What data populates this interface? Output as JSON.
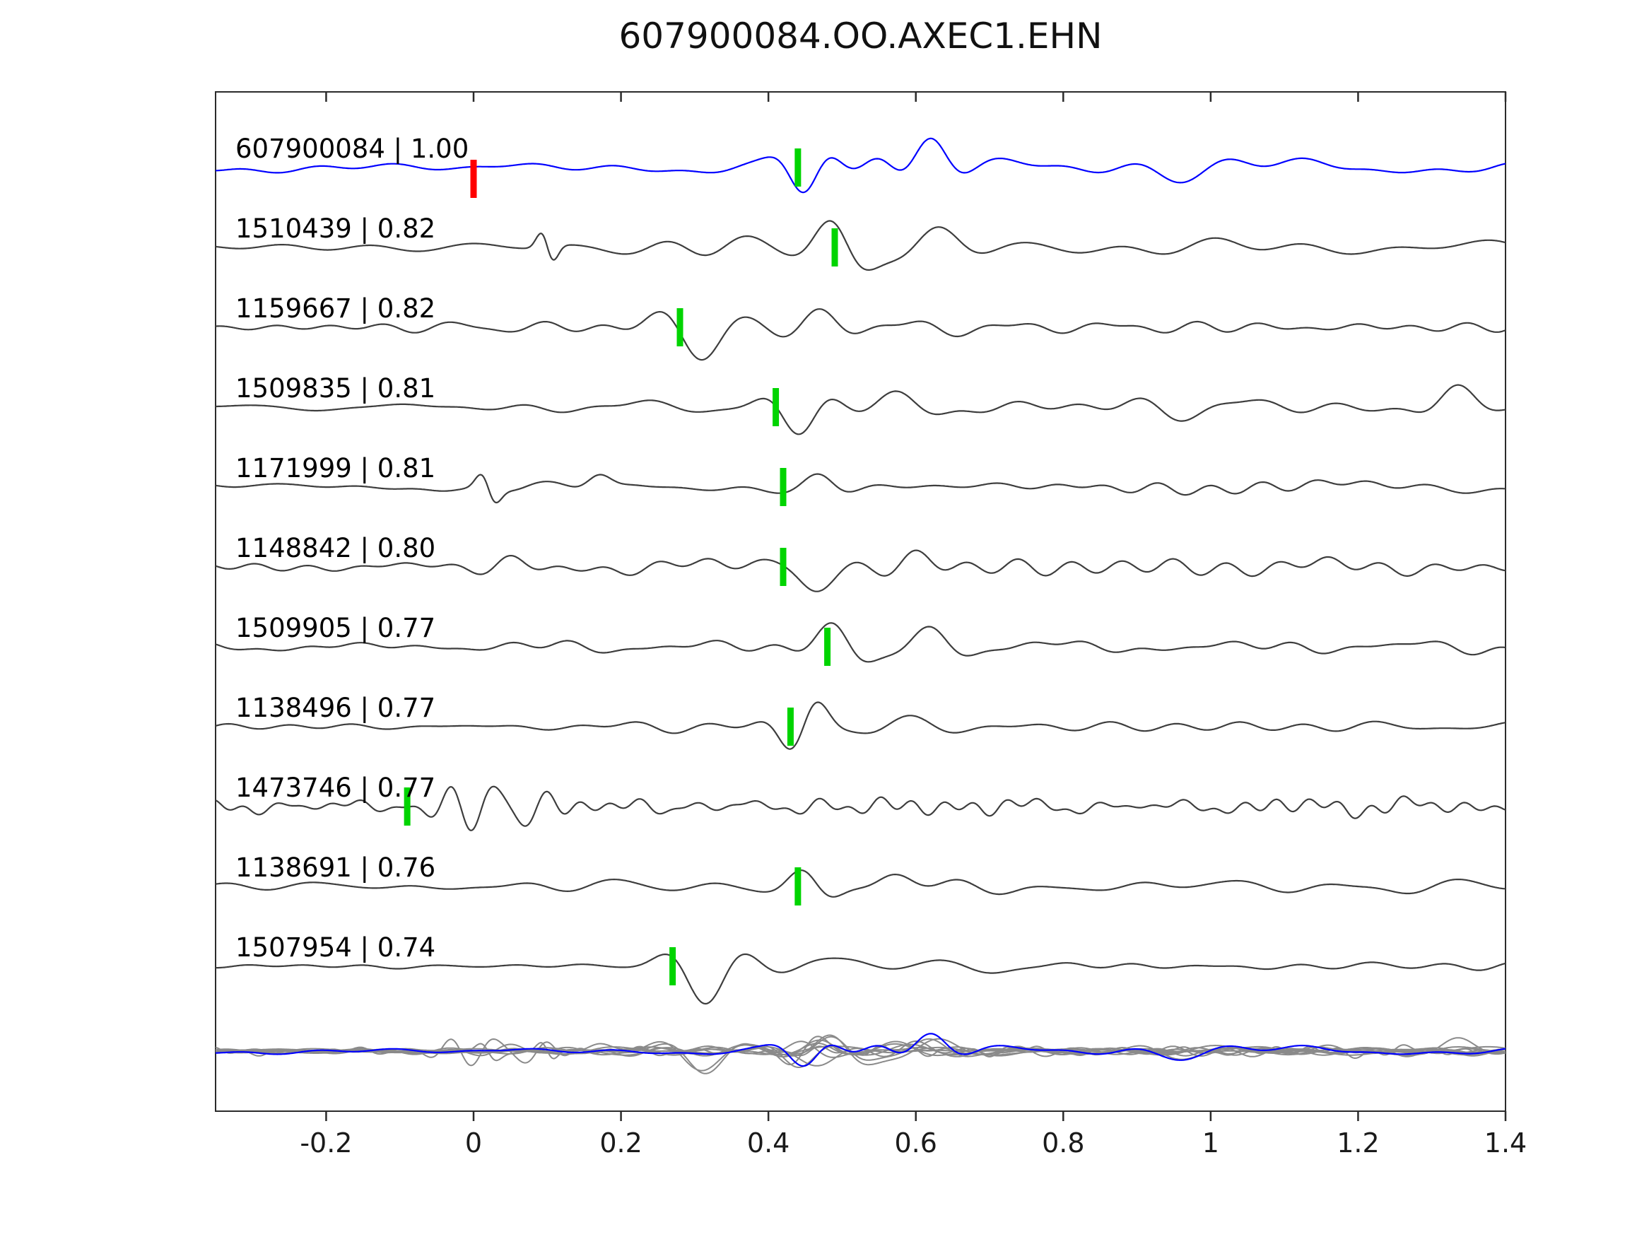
{
  "title": "607900084.OO.AXEC1.EHN",
  "colors": {
    "reference_trace": "#0000ff",
    "candidate_trace": "#3d3d3d",
    "overlay_trace": "#8a8a8a",
    "pick_marker": "#00d400",
    "reference_pick_marker": "#ff0000",
    "axis": "#2b2b2b",
    "background": "#ffffff"
  },
  "chart_data": {
    "type": "line",
    "subtype": "seismic-waveform-stack",
    "title": "607900084.OO.AXEC1.EHN",
    "xlabel": "",
    "ylabel": "",
    "xlim": [
      -0.35,
      1.4
    ],
    "xticks": [
      -0.2,
      0,
      0.2,
      0.4,
      0.6,
      0.8,
      1,
      1.2,
      1.4
    ],
    "xtick_labels": [
      "-0.2",
      "0",
      "0.2",
      "0.4",
      "0.6",
      "0.8",
      "1",
      "1.2",
      "1.4"
    ],
    "grid": false,
    "legend": "none",
    "traces": [
      {
        "id": "607900084",
        "similarity": 1.0,
        "label": "607900084 | 1.00",
        "color": "#0000ff",
        "picks": [
          {
            "time": 0.0,
            "color": "#ff0000",
            "offset": 16
          },
          {
            "time": 0.44,
            "color": "#00d400",
            "offset": 0
          }
        ],
        "synthesis": {
          "seed": 101,
          "noise_amp": 6,
          "freq_scale": 1,
          "pre_gain": 0.7,
          "bursts": [
            [
              0.45,
              38,
              0.04,
              9,
              3.3
            ],
            [
              0.55,
              26,
              0.05,
              8,
              0
            ],
            [
              0.62,
              50,
              0.045,
              6.5,
              0
            ],
            [
              0.75,
              10,
              0.1,
              7,
              1
            ],
            [
              0.95,
              13,
              0.12,
              6,
              2
            ],
            [
              1.1,
              10,
              0.1,
              7,
              4
            ]
          ]
        }
      },
      {
        "id": "1510439",
        "similarity": 0.82,
        "label": "1510439 | 0.82",
        "color": "#3d3d3d",
        "picks": [
          {
            "time": 0.49,
            "color": "#00d400",
            "offset": 0
          }
        ],
        "synthesis": {
          "seed": 202,
          "noise_amp": 5,
          "freq_scale": 1,
          "pre_gain": 0.7,
          "bursts": [
            [
              0.1,
              36,
              0.015,
              16,
              1.57
            ],
            [
              0.5,
              40,
              0.05,
              8,
              1.2
            ],
            [
              0.63,
              24,
              0.07,
              7,
              0
            ],
            [
              0.3,
              8,
              0.1,
              9,
              2
            ]
          ]
        }
      },
      {
        "id": "1159667",
        "similarity": 0.82,
        "label": "1159667 | 0.82",
        "color": "#3d3d3d",
        "picks": [
          {
            "time": 0.28,
            "color": "#00d400",
            "offset": 0
          }
        ],
        "synthesis": {
          "seed": 303,
          "noise_amp": 5,
          "freq_scale": 1,
          "pre_gain": 0.7,
          "bursts": [
            [
              0.31,
              46,
              0.06,
              7,
              2.9
            ],
            [
              0.47,
              20,
              0.06,
              7,
              0
            ],
            [
              0.6,
              10,
              0.1,
              6,
              1
            ]
          ]
        }
      },
      {
        "id": "1509835",
        "similarity": 0.81,
        "label": "1509835 | 0.81",
        "color": "#3d3d3d",
        "picks": [
          {
            "time": 0.41,
            "color": "#00d400",
            "offset": 0
          }
        ],
        "synthesis": {
          "seed": 404,
          "noise_amp": 6,
          "freq_scale": 1,
          "pre_gain": 0.7,
          "bursts": [
            [
              0.44,
              38,
              0.05,
              8,
              3.0
            ],
            [
              0.58,
              20,
              0.07,
              7,
              0
            ],
            [
              0.95,
              12,
              0.1,
              7,
              2
            ],
            [
              1.34,
              30,
              0.05,
              7,
              0.5
            ]
          ]
        }
      },
      {
        "id": "1171999",
        "similarity": 0.81,
        "label": "1171999 | 0.81",
        "color": "#3d3d3d",
        "picks": [
          {
            "time": 0.42,
            "color": "#00d400",
            "offset": 0
          }
        ],
        "synthesis": {
          "seed": 505,
          "noise_amp": 4.5,
          "freq_scale": 1,
          "pre_gain": 0.7,
          "bursts": [
            [
              0.02,
              30,
              0.018,
              15,
              1.57
            ],
            [
              0.17,
              12,
              0.03,
              10,
              0
            ],
            [
              0.47,
              15,
              0.04,
              8,
              0
            ],
            [
              1.0,
              7,
              0.2,
              14,
              0
            ]
          ]
        }
      },
      {
        "id": "1148842",
        "similarity": 0.8,
        "label": "1148842 | 0.80",
        "color": "#3d3d3d",
        "picks": [
          {
            "time": 0.42,
            "color": "#00d400",
            "offset": 0
          }
        ],
        "synthesis": {
          "seed": 606,
          "noise_amp": 6,
          "freq_scale": 1,
          "pre_gain": 0.7,
          "bursts": [
            [
              0.05,
              14,
              0.05,
              9,
              0
            ],
            [
              0.46,
              42,
              0.05,
              8,
              3.0
            ],
            [
              0.6,
              16,
              0.08,
              7,
              0
            ]
          ]
        }
      },
      {
        "id": "1509905",
        "similarity": 0.77,
        "label": "1509905 | 0.77",
        "color": "#3d3d3d",
        "picks": [
          {
            "time": 0.48,
            "color": "#00d400",
            "offset": 0
          }
        ],
        "synthesis": {
          "seed": 707,
          "noise_amp": 5,
          "freq_scale": 1,
          "pre_gain": 0.7,
          "bursts": [
            [
              0.5,
              38,
              0.05,
              7.5,
              1.0
            ],
            [
              0.62,
              24,
              0.06,
              7,
              0
            ]
          ]
        }
      },
      {
        "id": "1138496",
        "similarity": 0.77,
        "label": "1138496 | 0.77",
        "color": "#3d3d3d",
        "picks": [
          {
            "time": 0.43,
            "color": "#00d400",
            "offset": 0
          }
        ],
        "synthesis": {
          "seed": 808,
          "noise_amp": 4,
          "freq_scale": 1,
          "pre_gain": 0.7,
          "bursts": [
            [
              0.45,
              44,
              0.04,
              10,
              5.0
            ],
            [
              0.6,
              12,
              0.08,
              7,
              0
            ]
          ]
        }
      },
      {
        "id": "1473746",
        "similarity": 0.77,
        "label": "1473746 | 0.77",
        "color": "#3d3d3d",
        "picks": [
          {
            "time": -0.09,
            "color": "#00d400",
            "offset": 0
          }
        ],
        "synthesis": {
          "seed": 909,
          "noise_amp": 8,
          "freq_scale": 1.7,
          "pre_gain": 1.1,
          "bursts": [
            [
              0.03,
              30,
              0.09,
              15,
              0
            ],
            [
              -0.07,
              16,
              0.04,
              12,
              2
            ],
            [
              0.3,
              9,
              0.25,
              11,
              0
            ]
          ]
        }
      },
      {
        "id": "1138691",
        "similarity": 0.76,
        "label": "1138691 | 0.76",
        "color": "#3d3d3d",
        "picks": [
          {
            "time": 0.44,
            "color": "#00d400",
            "offset": 0
          }
        ],
        "synthesis": {
          "seed": 1010,
          "noise_amp": 5,
          "freq_scale": 1,
          "pre_gain": 0.7,
          "bursts": [
            [
              0.46,
              36,
              0.045,
              8,
              1.2
            ],
            [
              0.57,
              22,
              0.06,
              7,
              0
            ],
            [
              0.7,
              10,
              0.08,
              7,
              2
            ]
          ]
        }
      },
      {
        "id": "1507954",
        "similarity": 0.74,
        "label": "1507954 | 0.74",
        "color": "#3d3d3d",
        "picks": [
          {
            "time": 0.27,
            "color": "#00d400",
            "offset": 0
          }
        ],
        "synthesis": {
          "seed": 1111,
          "noise_amp": 3,
          "freq_scale": 1,
          "pre_gain": 0.6,
          "bursts": [
            [
              0.31,
              46,
              0.055,
              7,
              2.9
            ],
            [
              0.5,
              14,
              0.08,
              5.5,
              0
            ],
            [
              0.65,
              10,
              0.1,
              5,
              1
            ]
          ]
        }
      }
    ],
    "overlay_row": {
      "description": "all candidate traces overlaid in gray with the reference trace in blue",
      "gray_color": "#8a8a8a",
      "reference_color": "#0000ff",
      "amplitude_scale": 0.6
    }
  }
}
